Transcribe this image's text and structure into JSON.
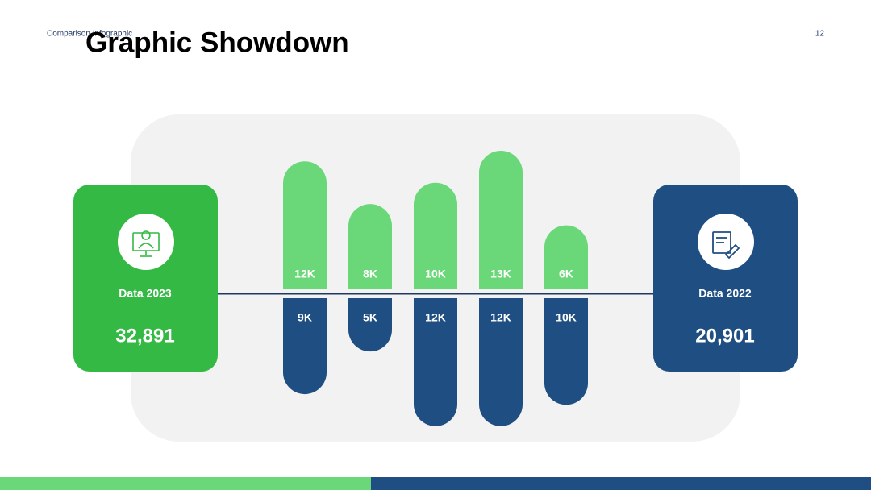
{
  "header": {
    "subtitle": "Comparison Infographic",
    "title": "Graphic Showdown",
    "page_number": "12"
  },
  "chart_data": {
    "type": "diverging-bar",
    "categories": [
      null,
      null,
      null,
      null,
      null
    ],
    "series": [
      {
        "name": "Data 2023",
        "color": "#6ad778",
        "card_color": "#34b944",
        "values": [
          12000,
          8000,
          10000,
          13000,
          6000
        ],
        "value_labels": [
          "12K",
          "8K",
          "10K",
          "13K",
          "6K"
        ],
        "total": {
          "value": 32891,
          "label": "32,891"
        }
      },
      {
        "name": "Data 2022",
        "color": "#1f4e82",
        "card_color": "#1f4e82",
        "values": [
          9000,
          5000,
          12000,
          12000,
          10000
        ],
        "value_labels": [
          "9K",
          "5K",
          "12K",
          "12K",
          "10K"
        ],
        "total": {
          "value": 20901,
          "label": "20,901"
        }
      }
    ]
  }
}
